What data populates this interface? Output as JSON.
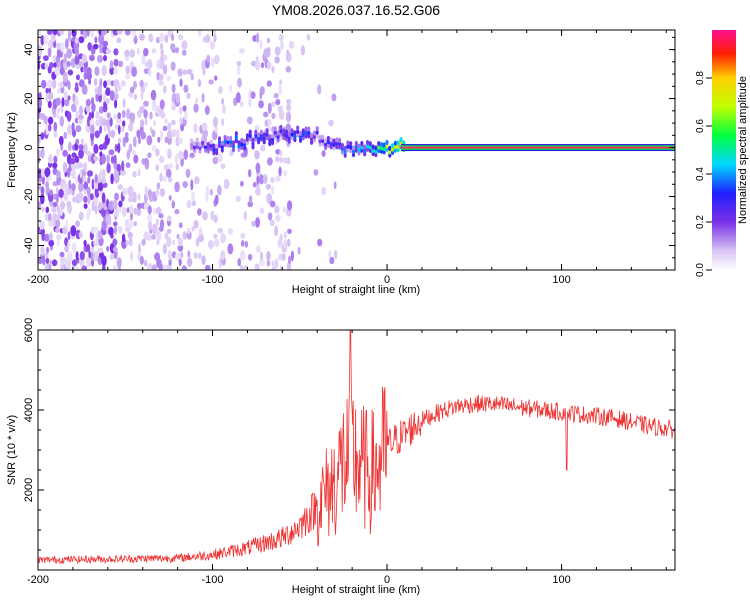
{
  "page_title": "YM08.2026.037.16.52.G06",
  "chart_data": [
    {
      "type": "heatmap",
      "title": "YM08.2026.037.16.52.G06",
      "xlabel": "Height of straight line (km)",
      "ylabel": "Frequency (Hz)",
      "xlim": [
        -200,
        165
      ],
      "ylim": [
        -50,
        48
      ],
      "xticks": [
        -200,
        -100,
        0,
        100
      ],
      "xtick_labels": [
        "-200",
        "-100",
        "0",
        "100"
      ],
      "yticks": [
        -40,
        -20,
        0,
        20,
        40
      ],
      "ytick_labels": [
        "-40",
        "-20",
        "0",
        "20",
        "40"
      ],
      "colorbar": {
        "label": "Normalized spectral amplitude",
        "range": [
          0,
          1
        ],
        "ticks": [
          0,
          0.2,
          0.4,
          0.6,
          0.8
        ],
        "tick_labels": [
          "0.0",
          "0.2",
          "0.4",
          "0.6",
          "0.8"
        ],
        "colors": [
          "#ffffff",
          "#d8c4f4",
          "#7a30e6",
          "#2020ff",
          "#00d8ff",
          "#00ff40",
          "#c0ff00",
          "#ffd000",
          "#ff2000",
          "#ff1090"
        ]
      },
      "signal_track": {
        "description_points_x_km": [
          -110,
          -100,
          -90,
          -80,
          -70,
          -60,
          -50,
          -40,
          -35,
          -30,
          -20,
          -10,
          0,
          10,
          50,
          100,
          165
        ],
        "frequency_hz": [
          0,
          1,
          2,
          3,
          4,
          5,
          6,
          5,
          2,
          0,
          0,
          0,
          0,
          0,
          0,
          0,
          0
        ],
        "amplitude": [
          0.2,
          0.3,
          0.35,
          0.3,
          0.35,
          0.3,
          0.35,
          0.25,
          0.3,
          0.3,
          0.35,
          0.45,
          0.6,
          0.85,
          0.9,
          0.9,
          0.9
        ]
      }
    },
    {
      "type": "line",
      "xlabel": "Height of straight line (km)",
      "ylabel": "SNR (10 * v/v)",
      "xlim": [
        -200,
        165
      ],
      "ylim": [
        0,
        6000
      ],
      "xticks": [
        -200,
        -100,
        0,
        100
      ],
      "xtick_labels": [
        "-200",
        "-100",
        "0",
        "100"
      ],
      "yticks": [
        2000,
        4000,
        6000
      ],
      "ytick_labels": [
        "2000",
        "4000",
        "6000"
      ],
      "series": [
        {
          "name": "SNR",
          "color": "#ee3333",
          "x": [
            -200,
            -150,
            -120,
            -100,
            -80,
            -60,
            -50,
            -40,
            -30,
            -25,
            -20,
            -15,
            -10,
            -5,
            0,
            10,
            20,
            30,
            40,
            50,
            60,
            70,
            80,
            90,
            100,
            110,
            120,
            130,
            140,
            150,
            165
          ],
          "y": [
            250,
            280,
            300,
            380,
            550,
            800,
            1100,
            1600,
            2200,
            2700,
            2900,
            2600,
            2400,
            2600,
            3100,
            3400,
            3750,
            3950,
            4100,
            4150,
            4150,
            4100,
            4050,
            4000,
            3950,
            3900,
            3850,
            3800,
            3700,
            3600,
            3500
          ]
        }
      ]
    }
  ]
}
